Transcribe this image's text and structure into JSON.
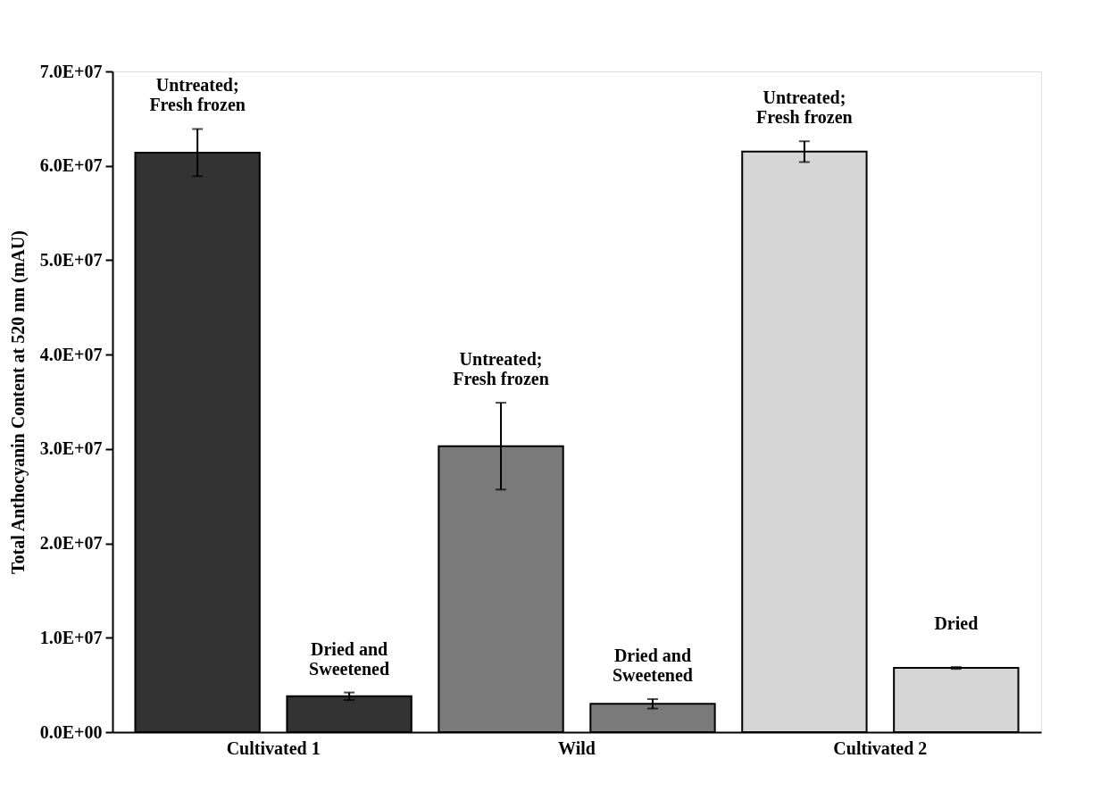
{
  "chart_data": {
    "type": "bar",
    "ylabel": "Total Anthocyanin Content at 520 nm (mAU)",
    "categories": [
      "Cultivated 1",
      "Wild",
      "Cultivated 2"
    ],
    "series": [
      {
        "colors": [
          "#333333",
          "#7a7a7a",
          "#d6d6d6"
        ],
        "values": [
          61400000,
          30300000,
          61500000
        ],
        "errors": [
          2500000,
          4600000,
          1100000
        ]
      },
      {
        "colors": [
          "#333333",
          "#7a7a7a",
          "#d6d6d6"
        ],
        "values": [
          3800000,
          3000000,
          6800000
        ],
        "errors": [
          400000,
          500000,
          100000
        ]
      }
    ],
    "annotations": [
      "Untreated;\nFresh frozen",
      "Dried and\nSweetened",
      "Untreated;\nFresh frozen",
      "Dried and\nSweetened",
      "Untreated;\nFresh frozen",
      "Dried"
    ],
    "ylim": [
      0,
      70000000
    ],
    "yticks": [
      {
        "value": 0,
        "label": "0.0E+00"
      },
      {
        "value": 10000000,
        "label": "1.0E+07"
      },
      {
        "value": 20000000,
        "label": "2.0E+07"
      },
      {
        "value": 30000000,
        "label": "3.0E+07"
      },
      {
        "value": 40000000,
        "label": "4.0E+07"
      },
      {
        "value": 50000000,
        "label": "5.0E+07"
      },
      {
        "value": 60000000,
        "label": "6.0E+07"
      },
      {
        "value": 70000000,
        "label": "7.0E+07"
      }
    ],
    "grid": false,
    "legend": false
  }
}
